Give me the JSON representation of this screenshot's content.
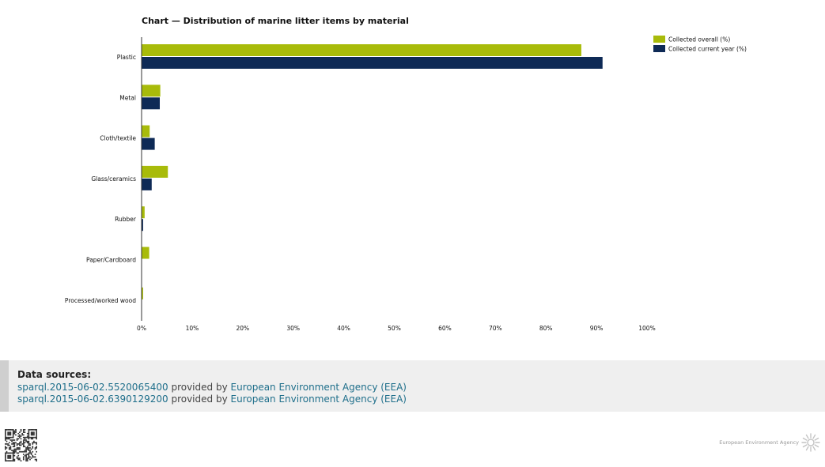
{
  "chart_title": "Chart — Distribution of marine litter items by material",
  "colors": {
    "overall": "#a8bb0a",
    "current_year": "#0e2a56",
    "axis": "#333333",
    "link": "#1f6f8b",
    "sources_bg": "#efefef"
  },
  "chart_data": {
    "type": "bar",
    "orientation": "horizontal",
    "title": "Chart — Distribution of marine litter items by material",
    "categories": [
      "Plastic",
      "Metal",
      "Cloth/textile",
      "Glass/ceramics",
      "Rubber",
      "Paper/Cardboard",
      "Processed/worked wood"
    ],
    "series": [
      {
        "name": "Collected overall (%)",
        "color": "#a8bb0a",
        "values": [
          87.0,
          3.7,
          1.6,
          5.2,
          0.6,
          1.5,
          0.3
        ]
      },
      {
        "name": "Collected current year (%)",
        "color": "#0e2a56",
        "values": [
          91.2,
          3.6,
          2.6,
          2.0,
          0.3,
          0.0,
          0.0
        ]
      }
    ],
    "xlim": [
      0,
      100
    ],
    "xticks": [
      "0%",
      "10%",
      "20%",
      "30%",
      "40%",
      "50%",
      "60%",
      "70%",
      "80%",
      "90%",
      "100%"
    ],
    "xlabel": "",
    "ylabel": "",
    "legend_position": "top-right",
    "grid": false
  },
  "sources": {
    "heading": "Data sources:",
    "items": [
      {
        "link_text": "sparql.2015-06-02.5520065400",
        "provider_text": "provided by",
        "org_text": "European Environment Agency (EEA)"
      },
      {
        "link_text": "sparql.2015-06-02.6390129200",
        "provider_text": "provided by",
        "org_text": "European Environment Agency (EEA)"
      }
    ]
  },
  "footer": {
    "brand_text": "European Environment Agency",
    "qr_icon": "qr-code-icon",
    "logo_icon": "eea-sun-logo-icon"
  }
}
